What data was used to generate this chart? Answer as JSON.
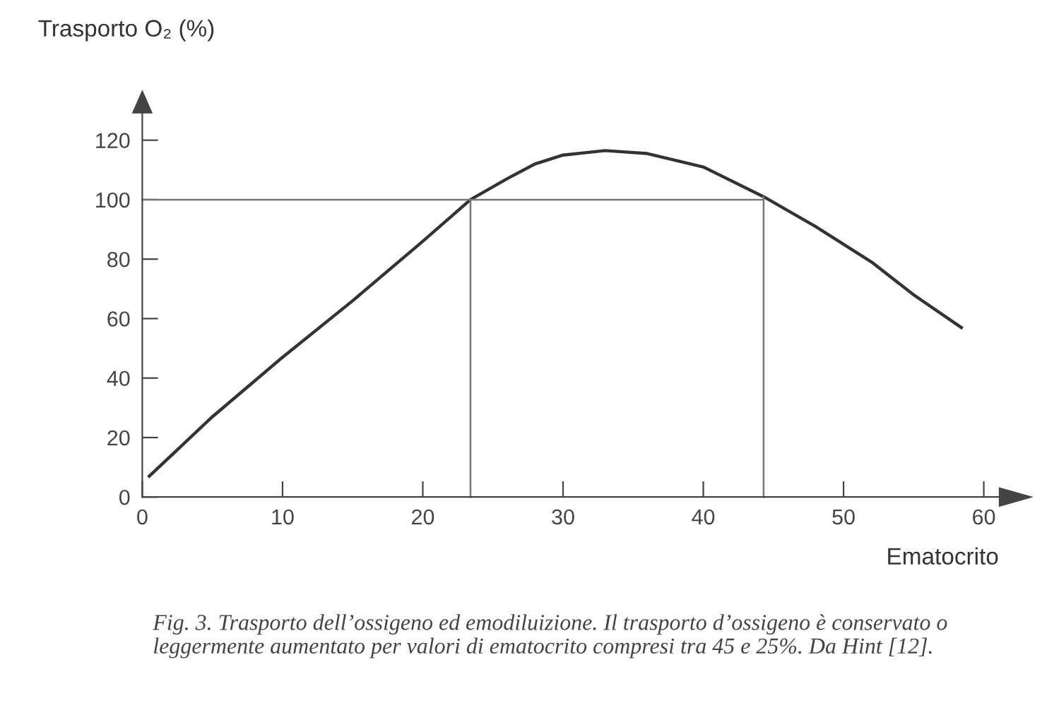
{
  "chart_data": {
    "type": "line",
    "ylabel": "Trasporto O₂ (%)",
    "xlabel": "Ematocrito",
    "annotations": [
      "Fig. 3. Trasporto dell’ossigeno ed emodiluizione. Il trasporto d’ossigeno è conservato o leggermente aumentato per valori di ematocrito compresi tra 45 e 25%. Da Hint [12]."
    ],
    "series": [
      {
        "color": "#333333",
        "x": [
          0.5,
          5,
          10,
          15,
          20,
          23.4,
          26,
          28,
          30,
          33,
          36,
          40,
          44.3,
          48,
          52,
          55,
          58.4
        ],
        "values": [
          7,
          27,
          47,
          66,
          86,
          100,
          107,
          112,
          115,
          116.5,
          115.5,
          111,
          101,
          91,
          79,
          68,
          57
        ]
      },
      {
        "color": "#777777",
        "x": [
          0,
          44.3
        ],
        "values": [
          100,
          100
        ]
      },
      {
        "color": "#777777",
        "x": [
          23.4,
          23.4
        ],
        "values": [
          0,
          100
        ]
      },
      {
        "color": "#777777",
        "x": [
          44.3,
          44.3
        ],
        "values": [
          0,
          101
        ]
      }
    ],
    "xlim": [
      0,
      62
    ],
    "ylim": [
      0,
      133
    ],
    "xticks": [
      0,
      10,
      20,
      30,
      40,
      50,
      60
    ],
    "yticks": [
      0,
      20,
      40,
      60,
      80,
      100,
      120
    ],
    "grid": false,
    "legend": false,
    "marker": "none",
    "line_style": "solid"
  }
}
